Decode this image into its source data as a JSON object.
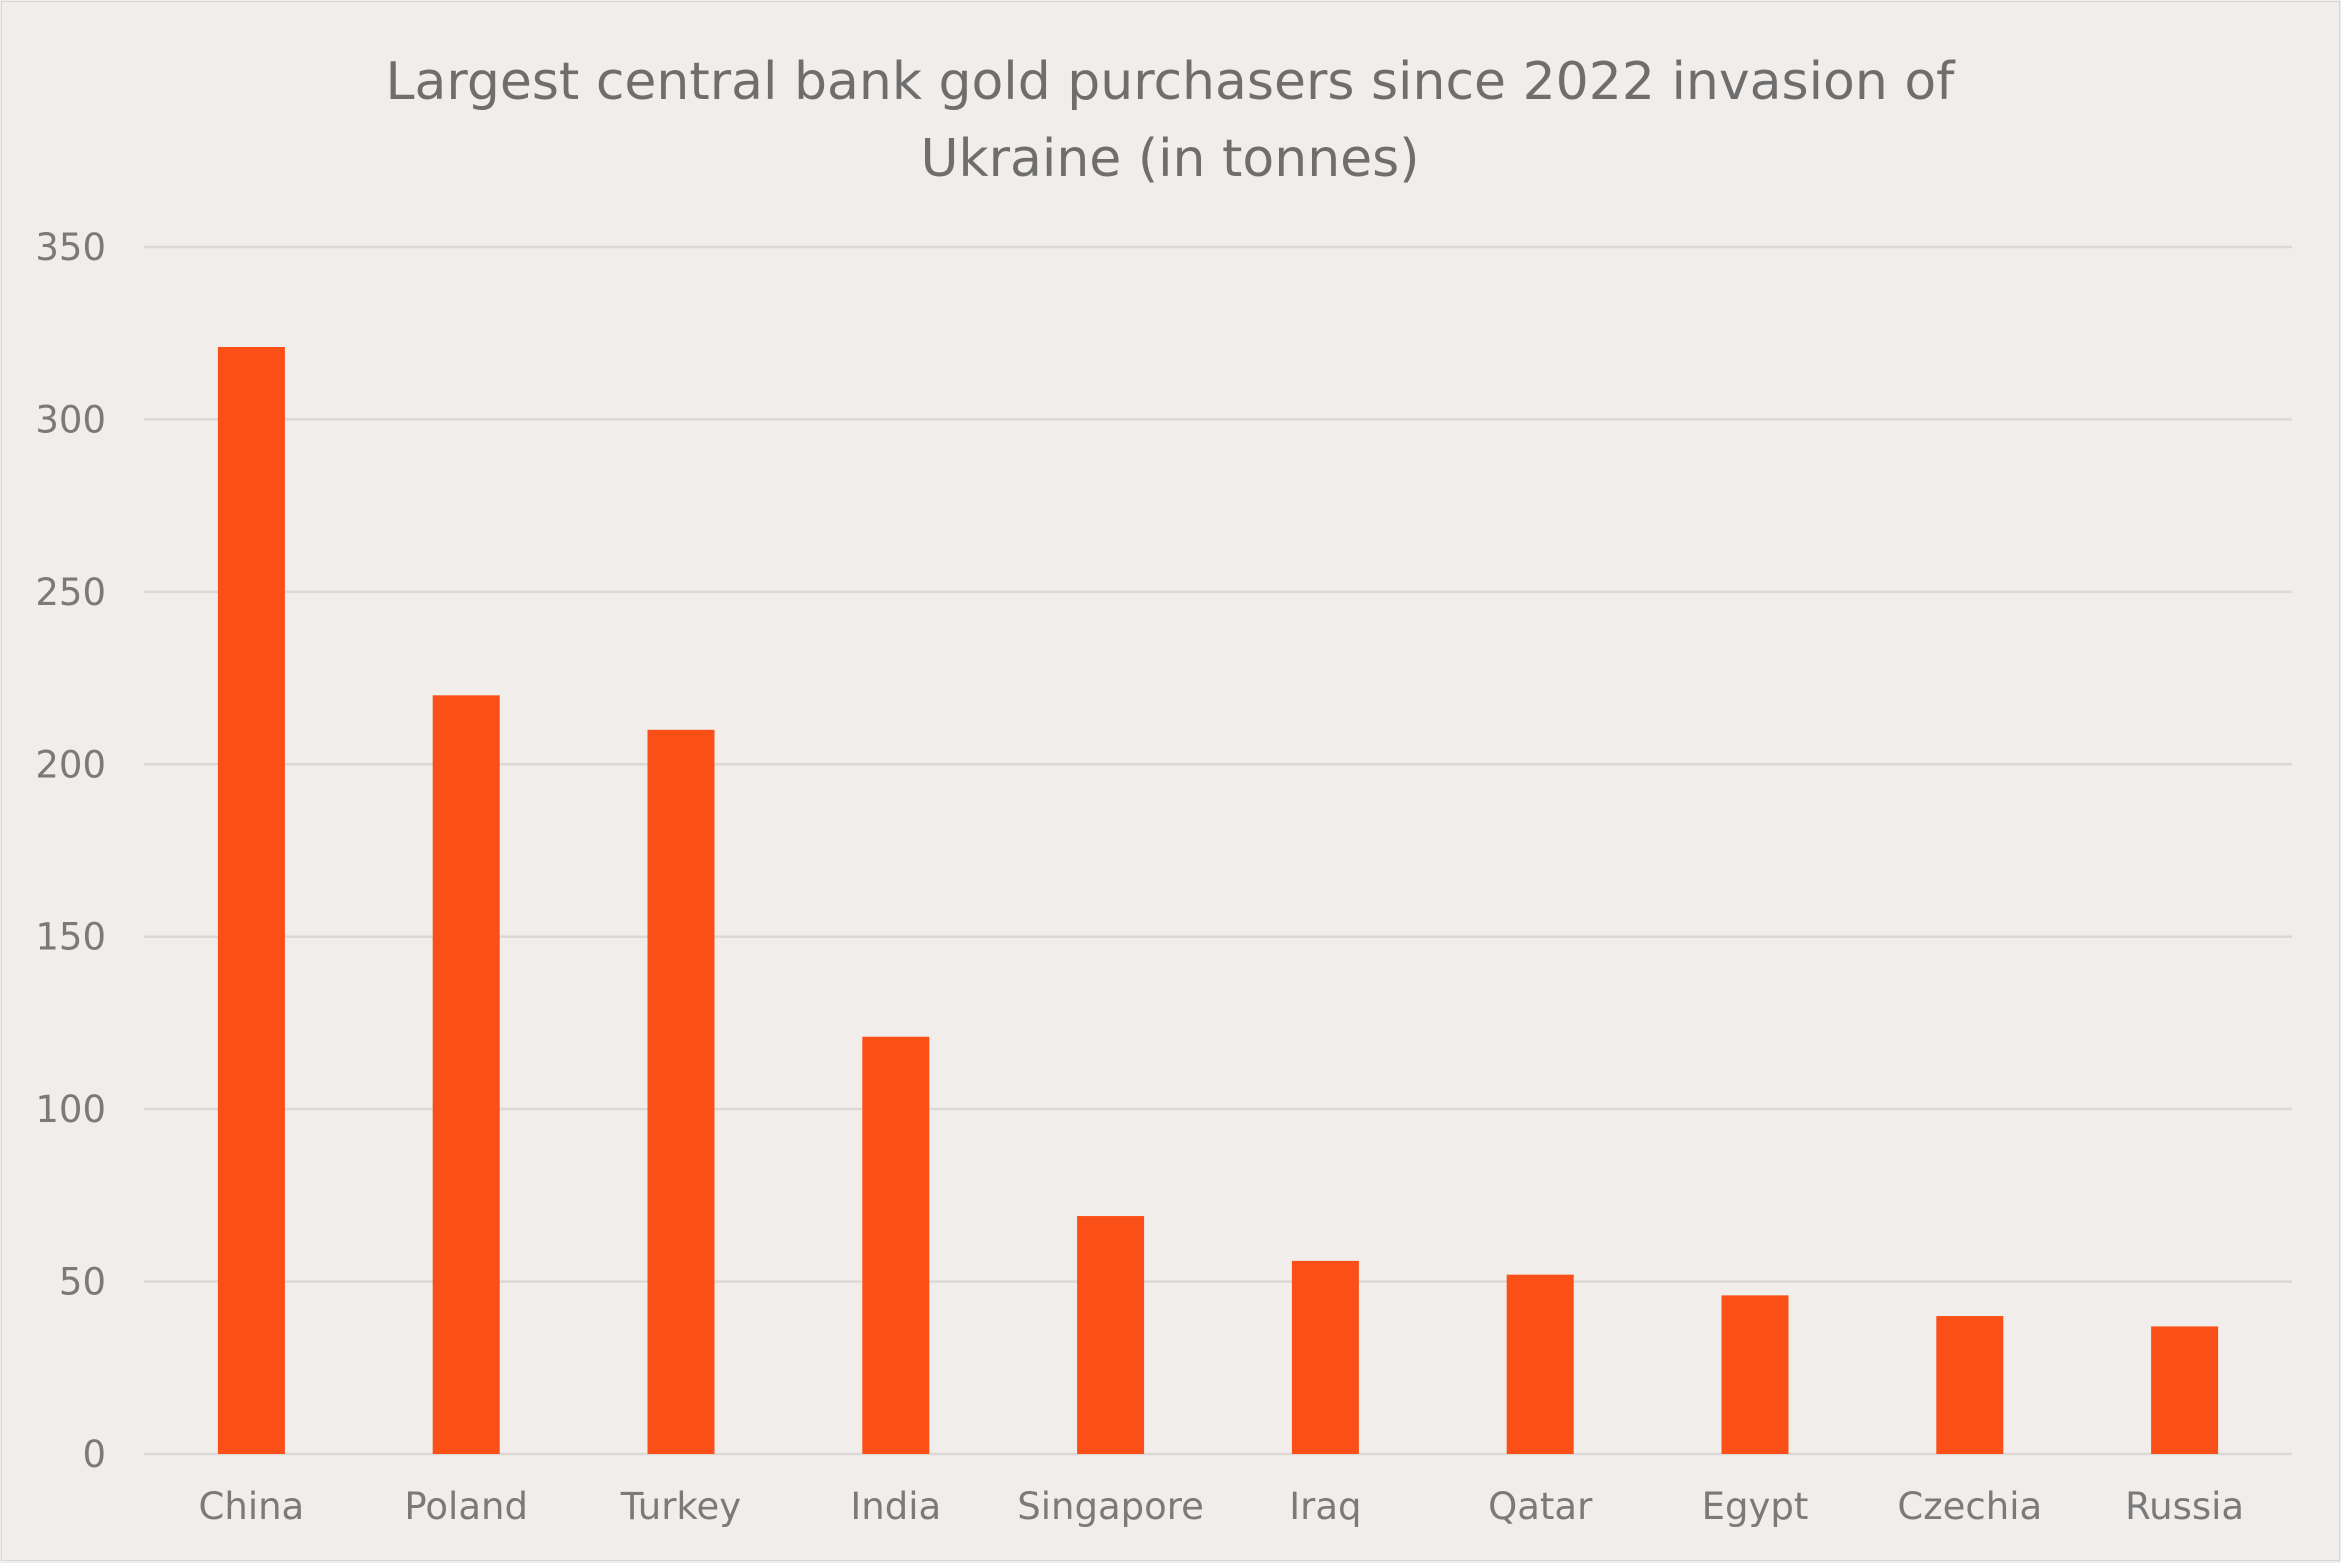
{
  "chart_data": {
    "type": "bar",
    "title_lines": [
      "Largest central bank gold purchasers since 2022 invasion of",
      "Ukraine (in tonnes)"
    ],
    "xlabel": "",
    "ylabel": "",
    "categories": [
      "China",
      "Poland",
      "Turkey",
      "India",
      "Singapore",
      "Iraq",
      "Qatar",
      "Egypt",
      "Czechia",
      "Russia"
    ],
    "values": [
      321,
      220,
      210,
      121,
      69,
      56,
      52,
      46,
      40,
      37
    ],
    "ylim": [
      0,
      350
    ],
    "yticks": [
      0,
      50,
      100,
      150,
      200,
      250,
      300,
      350
    ],
    "grid": true,
    "legend": "none",
    "colors": {
      "bar": "#fa4f17",
      "background": "#f1edea",
      "grid": "#dcd8d5",
      "text": "#6e6e6e"
    }
  }
}
